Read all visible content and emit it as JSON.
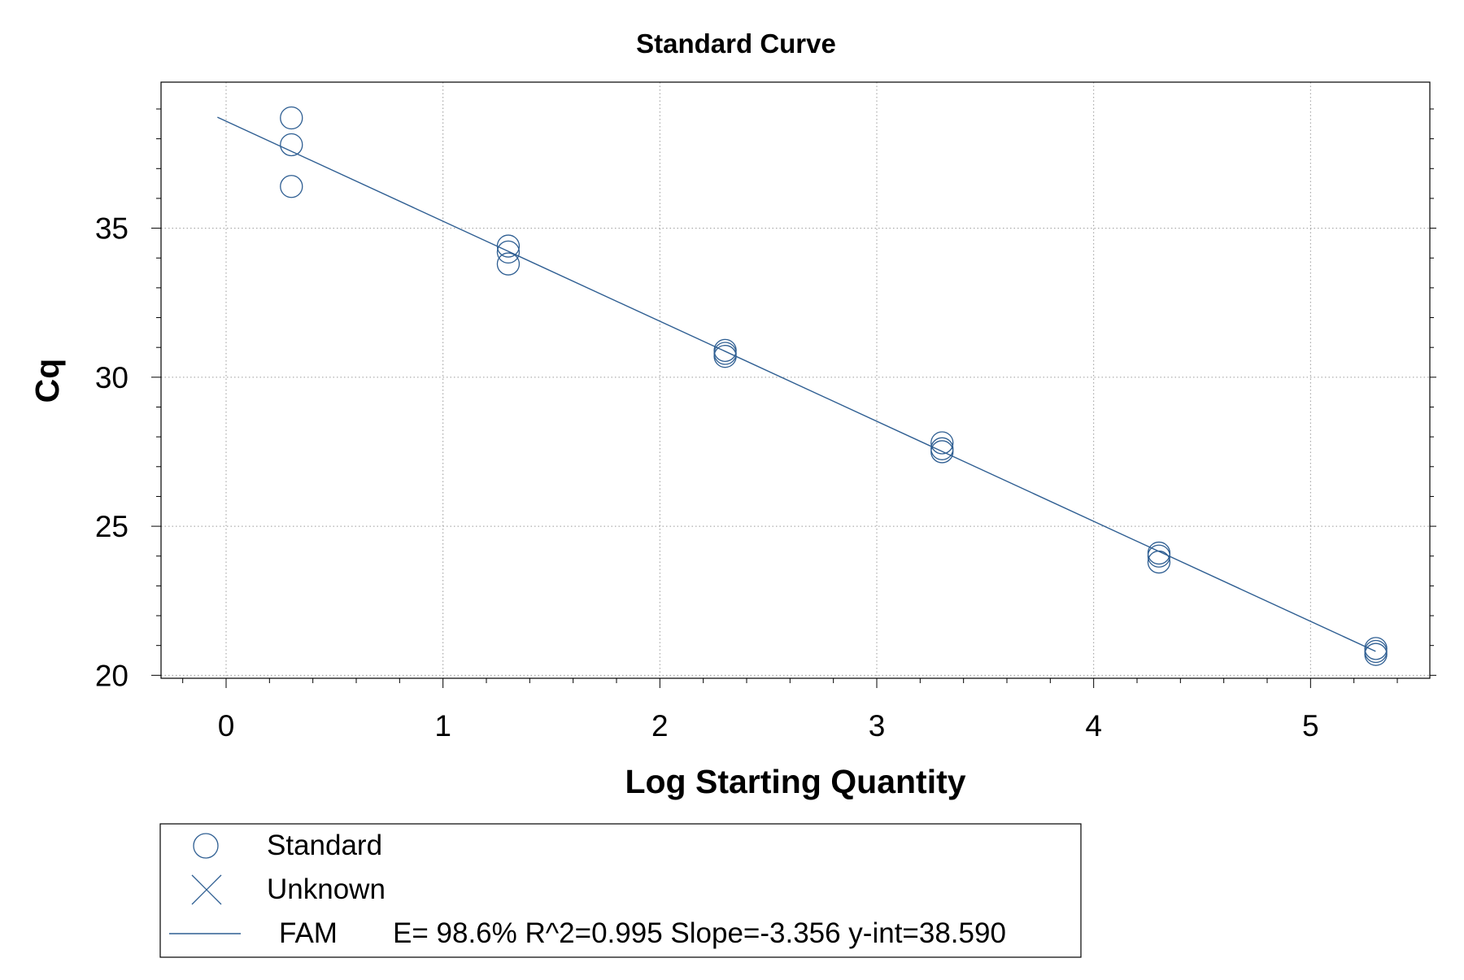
{
  "colors": {
    "series": "#2e5e92",
    "grid": "#9a9a9a",
    "axis": "#000000",
    "background": "#ffffff"
  },
  "chart_data": {
    "type": "scatter",
    "title": "Standard Curve",
    "xlabel": "Log Starting Quantity",
    "ylabel": "Cq",
    "xlim": [
      -0.3,
      5.55
    ],
    "ylim": [
      19.9,
      39.9
    ],
    "xticks": [
      "0",
      "1",
      "2",
      "3",
      "4",
      "5"
    ],
    "yticks": [
      "20",
      "25",
      "30",
      "35"
    ],
    "grid": true,
    "legend_position": "bottom",
    "series": [
      {
        "name": "Standard",
        "marker": "circle",
        "points": [
          {
            "x": 0.301,
            "y": 38.7
          },
          {
            "x": 0.301,
            "y": 37.8
          },
          {
            "x": 0.301,
            "y": 36.4
          },
          {
            "x": 1.301,
            "y": 34.4
          },
          {
            "x": 1.301,
            "y": 34.2
          },
          {
            "x": 1.301,
            "y": 33.8
          },
          {
            "x": 2.301,
            "y": 30.9
          },
          {
            "x": 2.301,
            "y": 30.8
          },
          {
            "x": 2.301,
            "y": 30.7
          },
          {
            "x": 3.301,
            "y": 27.8
          },
          {
            "x": 3.301,
            "y": 27.6
          },
          {
            "x": 3.301,
            "y": 27.5
          },
          {
            "x": 4.301,
            "y": 24.1
          },
          {
            "x": 4.301,
            "y": 24.0
          },
          {
            "x": 4.301,
            "y": 23.8
          },
          {
            "x": 5.301,
            "y": 20.9
          },
          {
            "x": 5.301,
            "y": 20.8
          },
          {
            "x": 5.301,
            "y": 20.7
          }
        ]
      },
      {
        "name": "Unknown",
        "marker": "x",
        "points": []
      }
    ],
    "fit": {
      "name": "FAM",
      "stats": "E= 98.6% R^2=0.995 Slope=-3.356 y-int=38.590",
      "slope": -3.356,
      "intercept": 38.59,
      "x_range": [
        -0.04,
        5.3
      ]
    },
    "legend": [
      {
        "marker": "circle",
        "label": "Standard"
      },
      {
        "marker": "x",
        "label": "Unknown"
      },
      {
        "marker": "line",
        "label": "FAM",
        "stats": "E= 98.6% R^2=0.995 Slope=-3.356 y-int=38.590"
      }
    ]
  }
}
